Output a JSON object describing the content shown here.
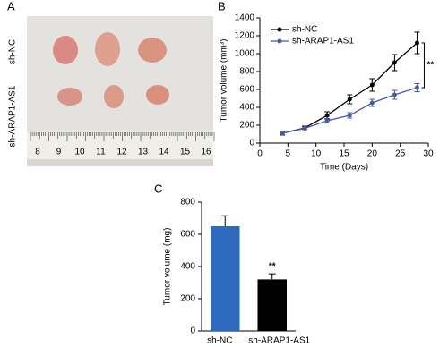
{
  "panel_a": {
    "label": "A",
    "row_labels": [
      "sh-NC",
      "sh-ARAP1-AS1"
    ],
    "ruler_labels": [
      "8",
      "9",
      "10",
      "11",
      "12",
      "13",
      "14",
      "15",
      "16"
    ]
  },
  "chart_data": [
    {
      "type": "line",
      "panel_label": "B",
      "xlabel": "Time (Days)",
      "ylabel": "Tumor volume (mm³)",
      "x": [
        4,
        8,
        12,
        16,
        20,
        24,
        28
      ],
      "series": [
        {
          "name": "sh-NC",
          "color": "#000000",
          "values": [
            110,
            170,
            310,
            490,
            650,
            900,
            1120
          ],
          "errors": [
            20,
            20,
            40,
            50,
            70,
            90,
            120
          ]
        },
        {
          "name": "sh-ARAP1-AS1",
          "color": "#4a5aa0",
          "values": [
            110,
            165,
            250,
            310,
            450,
            540,
            620
          ],
          "errors": [
            15,
            15,
            25,
            30,
            40,
            50,
            45
          ]
        }
      ],
      "xlim": [
        0,
        30
      ],
      "xticks": [
        0,
        5,
        10,
        15,
        20,
        25,
        30
      ],
      "ylim": [
        0,
        1400
      ],
      "yticks": [
        0,
        200,
        400,
        600,
        800,
        1000,
        1200,
        1400
      ],
      "annotation": "**",
      "legend": "upper-left"
    },
    {
      "type": "bar",
      "panel_label": "C",
      "ylabel": "Tumor volume (mg)",
      "categories": [
        "sh-NC",
        "sh-ARAP1-AS1"
      ],
      "values": [
        650,
        320
      ],
      "errors": [
        65,
        35
      ],
      "colors": [
        "#2e6bbf",
        "#000000"
      ],
      "ylim": [
        0,
        800
      ],
      "yticks": [
        0,
        200,
        400,
        600,
        800
      ],
      "annotation": "**"
    }
  ]
}
